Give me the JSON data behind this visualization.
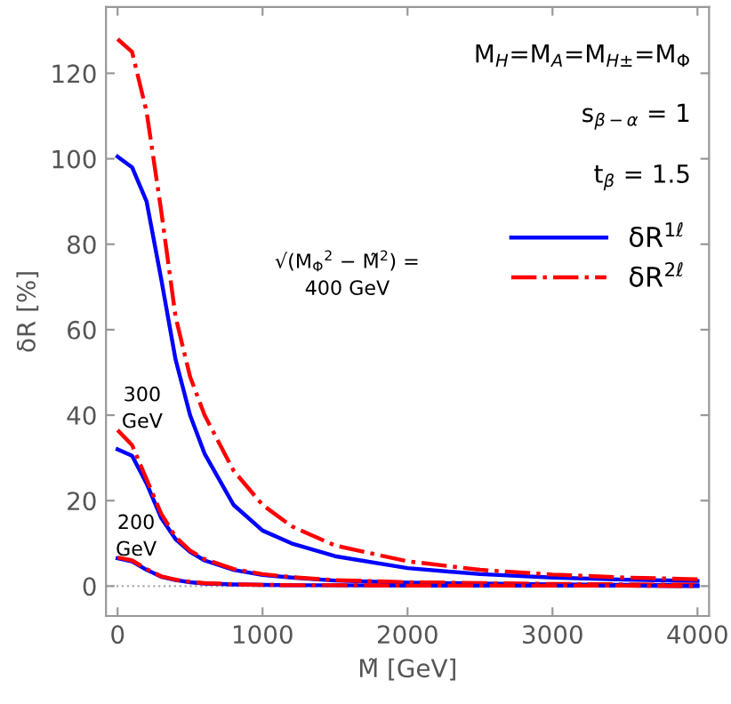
{
  "chart_data": {
    "type": "line",
    "xlabel": "M̃ [GeV]",
    "ylabel": "δR [%]",
    "xlim": [
      -80,
      4080
    ],
    "ylim": [
      -7,
      135.5
    ],
    "xticks": [
      0,
      1000,
      2000,
      3000,
      4000
    ],
    "yticks": [
      0,
      20,
      40,
      60,
      80,
      100,
      120
    ],
    "grid": false,
    "legend": "top right",
    "marker": "none",
    "x": [
      0,
      100,
      200,
      300,
      400,
      500,
      600,
      800,
      1000,
      1200,
      1500,
      2000,
      2500,
      3000,
      3500,
      4000
    ],
    "series": [
      {
        "name": "δR$^{1ℓ}$",
        "color": "#0000ff",
        "line_style": "solid",
        "values": [
          100.5,
          98,
          90,
          72,
          53,
          40,
          31,
          19,
          13,
          10,
          7,
          4.2,
          2.8,
          2,
          1.5,
          1.2
        ]
      },
      {
        "name": "δR$^{2ℓ}$",
        "color": "#ff0000",
        "line_style": "dashdot",
        "values": [
          128,
          125,
          111,
          88,
          63,
          49,
          40,
          27,
          19,
          14,
          9.5,
          5.8,
          3.8,
          2.7,
          2,
          1.6
        ]
      },
      {
        "color": "#0000ff",
        "line_style": "solid",
        "values": [
          32,
          30.5,
          24,
          16,
          11,
          8,
          6,
          3.8,
          2.6,
          2,
          1.3,
          0.8,
          0.6,
          0.4,
          0.3,
          0.2
        ]
      },
      {
        "color": "#ff0000",
        "line_style": "dashdot",
        "values": [
          36.5,
          33,
          25,
          17,
          11.5,
          8.3,
          6.3,
          4,
          2.8,
          2.1,
          1.4,
          0.9,
          0.7,
          0.5,
          0.4,
          0.3
        ]
      },
      {
        "color": "#0000ff",
        "line_style": "solid",
        "values": [
          6.5,
          5.8,
          3.8,
          2.2,
          1.4,
          0.9,
          0.6,
          0.4,
          0.3,
          0.2,
          0.2,
          0.1,
          0.1,
          0.1,
          0.1,
          0
        ]
      },
      {
        "color": "#ff0000",
        "line_style": "dashdot",
        "values": [
          6.7,
          6,
          4,
          2.3,
          1.5,
          1,
          0.7,
          0.4,
          0.3,
          0.2,
          0.2,
          0.1,
          0.1,
          0.1,
          0.1,
          0
        ]
      }
    ],
    "ref_lines": [
      {
        "axis": "y",
        "value": 0,
        "color": "#aaaaaa",
        "line_style": "dotted"
      }
    ],
    "annotations": [
      "M$_{H}$=M$_{A}$=M$_{H±}$=M$_{Φ}$",
      "s$_{β−α}$ = 1",
      "t$_{β}$ = 1.5",
      "√(M$_{Φ}$$^{2}$ − M̃$^{2}$) =\n400 GeV",
      "300\nGeV",
      "200\nGeV"
    ]
  }
}
